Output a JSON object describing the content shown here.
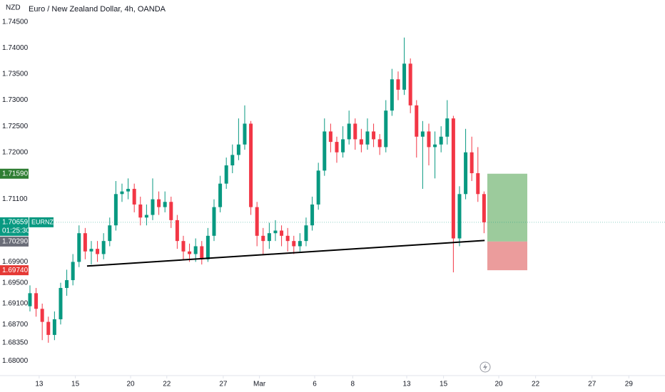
{
  "chart_data": {
    "type": "candlestick",
    "title": "Euro / New Zealand Dollar, 4h, OANDA",
    "currency": "NZD",
    "symbol": "EURNZD",
    "countdown": "01:25:30",
    "up_color": "#089981",
    "down_color": "#f23645",
    "ylim": [
      1.6772,
      1.7492
    ],
    "xlim": [
      -0.23,
      103.49
    ],
    "yticks": [
      {
        "value": 1.745,
        "label": "1.74500"
      },
      {
        "value": 1.74,
        "label": "1.74000"
      },
      {
        "value": 1.735,
        "label": "1.73500"
      },
      {
        "value": 1.73,
        "label": "1.73000"
      },
      {
        "value": 1.725,
        "label": "1.72500"
      },
      {
        "value": 1.72,
        "label": "1.72000"
      },
      {
        "value": 1.711,
        "label": "1.71100"
      },
      {
        "value": 1.699,
        "label": "1.69900"
      },
      {
        "value": 1.695,
        "label": "1.69500"
      },
      {
        "value": 1.691,
        "label": "1.69100"
      },
      {
        "value": 1.687,
        "label": "1.68700"
      },
      {
        "value": 1.6835,
        "label": "1.68350"
      },
      {
        "value": 1.68,
        "label": "1.68000"
      }
    ],
    "xticks": [
      {
        "value": 1.5,
        "label": "13"
      },
      {
        "value": 7.4,
        "label": "15"
      },
      {
        "value": 16.4,
        "label": "20"
      },
      {
        "value": 22.3,
        "label": "22"
      },
      {
        "value": 31.5,
        "label": "27"
      },
      {
        "value": 37.4,
        "label": "Mar"
      },
      {
        "value": 46.4,
        "label": "6"
      },
      {
        "value": 52.6,
        "label": "8"
      },
      {
        "value": 61.4,
        "label": "13"
      },
      {
        "value": 67.4,
        "label": "15"
      },
      {
        "value": 76.4,
        "label": "20"
      },
      {
        "value": 82.4,
        "label": "22"
      },
      {
        "value": 91.6,
        "label": "27"
      },
      {
        "value": 97.6,
        "label": "29"
      }
    ],
    "open": [
      1.6905,
      1.693,
      1.69,
      1.6875,
      1.685,
      1.688,
      1.694,
      1.6955,
      1.699,
      1.7045,
      1.701,
      1.7015,
      1.7005,
      1.703,
      1.706,
      1.712,
      1.7125,
      1.713,
      1.71,
      1.7075,
      1.708,
      1.711,
      1.7095,
      1.7105,
      1.707,
      1.703,
      1.701,
      1.7005,
      1.702,
      1.6995,
      1.704,
      1.7095,
      1.714,
      1.7175,
      1.7195,
      1.7215,
      1.7255,
      1.7095,
      1.704,
      1.703,
      1.7045,
      1.705,
      1.704,
      1.703,
      1.702,
      1.703,
      1.706,
      1.71,
      1.7165,
      1.724,
      1.722,
      1.72,
      1.7225,
      1.7255,
      1.7225,
      1.7215,
      1.724,
      1.7225,
      1.721,
      1.728,
      1.734,
      1.732,
      1.737,
      1.729,
      1.723,
      1.724,
      1.721,
      1.7215,
      1.723,
      1.7265,
      1.7035,
      1.712,
      1.72,
      1.716,
      1.712
    ],
    "high": [
      1.6945,
      1.694,
      1.691,
      1.6885,
      1.6895,
      1.695,
      1.6975,
      1.7005,
      1.706,
      1.7055,
      1.703,
      1.703,
      1.7045,
      1.7075,
      1.7145,
      1.714,
      1.715,
      1.714,
      1.7115,
      1.71,
      1.715,
      1.7125,
      1.7125,
      1.7115,
      1.708,
      1.704,
      1.7025,
      1.7035,
      1.703,
      1.7055,
      1.711,
      1.7155,
      1.719,
      1.7215,
      1.7265,
      1.729,
      1.726,
      1.7105,
      1.7055,
      1.7065,
      1.707,
      1.706,
      1.7055,
      1.704,
      1.7045,
      1.7075,
      1.7115,
      1.718,
      1.7265,
      1.7255,
      1.723,
      1.725,
      1.728,
      1.7265,
      1.7245,
      1.7265,
      1.7255,
      1.7235,
      1.73,
      1.736,
      1.7355,
      1.742,
      1.738,
      1.73,
      1.726,
      1.7255,
      1.724,
      1.725,
      1.73,
      1.727,
      1.7135,
      1.7245,
      1.723,
      1.721,
      1.7125
    ],
    "low": [
      1.6895,
      1.6885,
      1.684,
      1.6835,
      1.684,
      1.687,
      1.6925,
      1.6945,
      1.698,
      1.6995,
      1.6985,
      1.699,
      1.6995,
      1.702,
      1.705,
      1.7105,
      1.711,
      1.7085,
      1.706,
      1.706,
      1.707,
      1.708,
      1.7085,
      1.7055,
      1.7015,
      1.6995,
      1.699,
      1.699,
      1.6985,
      1.699,
      1.703,
      1.7085,
      1.713,
      1.716,
      1.7185,
      1.7205,
      1.708,
      1.702,
      1.7005,
      1.7015,
      1.703,
      1.702,
      1.701,
      1.7005,
      1.701,
      1.702,
      1.705,
      1.709,
      1.7155,
      1.72,
      1.718,
      1.719,
      1.7215,
      1.7205,
      1.72,
      1.7205,
      1.721,
      1.7195,
      1.72,
      1.727,
      1.73,
      1.731,
      1.7275,
      1.719,
      1.713,
      1.7175,
      1.715,
      1.72,
      1.7215,
      1.697,
      1.702,
      1.711,
      1.7145,
      1.7105,
      1.7045
    ],
    "close": [
      1.693,
      1.69,
      1.6875,
      1.685,
      1.688,
      1.694,
      1.6955,
      1.699,
      1.7045,
      1.701,
      1.7015,
      1.7005,
      1.703,
      1.706,
      1.712,
      1.7125,
      1.713,
      1.71,
      1.7075,
      1.708,
      1.711,
      1.7095,
      1.7105,
      1.707,
      1.703,
      1.701,
      1.7005,
      1.702,
      1.6995,
      1.704,
      1.7095,
      1.714,
      1.7175,
      1.7195,
      1.7215,
      1.7255,
      1.7095,
      1.704,
      1.703,
      1.7045,
      1.705,
      1.704,
      1.703,
      1.702,
      1.703,
      1.706,
      1.71,
      1.7165,
      1.724,
      1.722,
      1.72,
      1.7225,
      1.7255,
      1.7225,
      1.7215,
      1.724,
      1.7225,
      1.721,
      1.728,
      1.734,
      1.732,
      1.737,
      1.729,
      1.723,
      1.724,
      1.721,
      1.7215,
      1.723,
      1.7265,
      1.7035,
      1.712,
      1.72,
      1.716,
      1.712,
      1.70659
    ],
    "current_price": {
      "value": 1.70659,
      "label": "1.70659"
    },
    "position": {
      "target": {
        "value": 1.7159,
        "label": "1.71590"
      },
      "entry": {
        "value": 1.7029,
        "label": "1.70290"
      },
      "stop": {
        "value": 1.6974,
        "label": "1.69740"
      }
    },
    "trendline": {
      "x": [
        9.3,
        74.1
      ],
      "price": [
        1.6982,
        1.7031
      ]
    }
  }
}
